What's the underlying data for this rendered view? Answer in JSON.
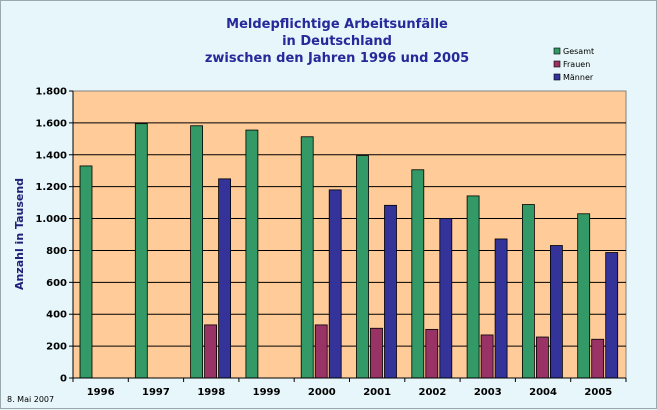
{
  "chart_data": {
    "type": "bar",
    "title_lines": [
      "Meldepflichtige Arbeitsunfälle",
      "in Deutschland",
      "zwischen den Jahren 1996 und 2005"
    ],
    "ylabel": "Anzahl in Tausend",
    "xlabel": "",
    "ylim": [
      0,
      1800
    ],
    "y_ticks": [
      0,
      200,
      400,
      600,
      800,
      1000,
      1200,
      1400,
      1600,
      1800
    ],
    "y_tick_labels": [
      "0",
      "200",
      "400",
      "600",
      "800",
      "1.000",
      "1.200",
      "1.400",
      "1.600",
      "1.800"
    ],
    "categories": [
      "1996",
      "1997",
      "1998",
      "1999",
      "2000",
      "2001",
      "2002",
      "2003",
      "2004",
      "2005"
    ],
    "series": [
      {
        "name": "Gesamt",
        "color": "#339966",
        "values": [
          1330,
          1595,
          1582,
          1555,
          1513,
          1395,
          1306,
          1142,
          1088,
          1030
        ]
      },
      {
        "name": "Frauen",
        "color": "#993366",
        "values": [
          null,
          null,
          333,
          null,
          333,
          312,
          305,
          270,
          257,
          243
        ]
      },
      {
        "name": "Männer",
        "color": "#333399",
        "values": [
          null,
          null,
          1249,
          null,
          1180,
          1083,
          1001,
          872,
          831,
          787
        ]
      }
    ],
    "grid": true,
    "legend_position": "top-right",
    "footnote": "8. Mai 2007"
  }
}
